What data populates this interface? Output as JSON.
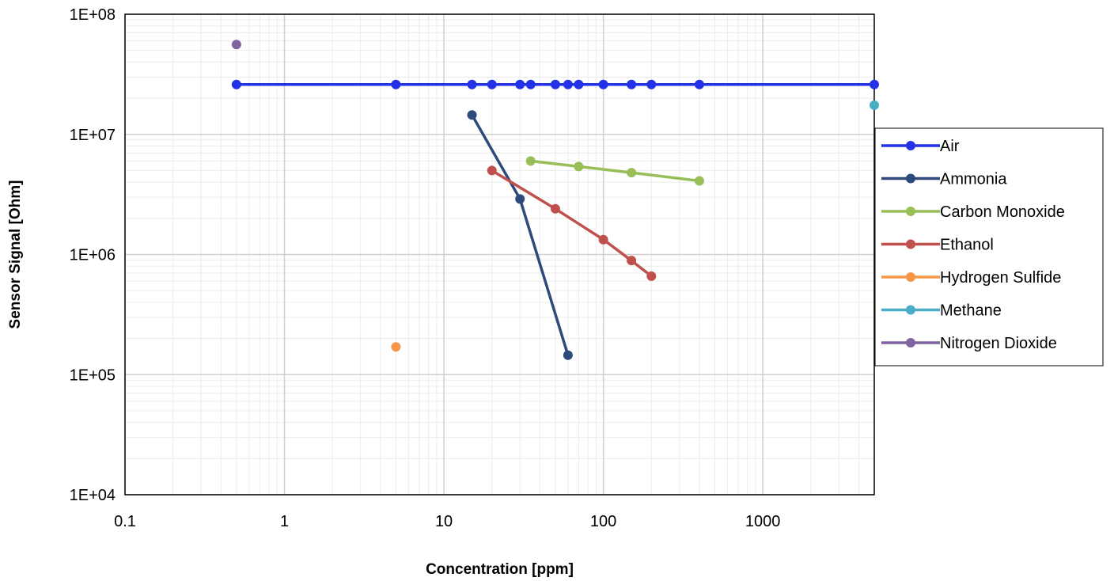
{
  "chart_data": {
    "type": "line",
    "title": "",
    "xlabel": "Concentration [ppm]",
    "ylabel": "Sensor Signal [Ohm]",
    "x_scale": "log",
    "y_scale": "log",
    "xlim": [
      0.1,
      5000
    ],
    "ylim": [
      10000,
      100000000
    ],
    "x_tick_labels": [
      "0.1",
      "1",
      "10",
      "100",
      "1000"
    ],
    "y_tick_labels": [
      "1E+04",
      "1E+05",
      "1E+06",
      "1E+07",
      "1E+08"
    ],
    "grid": true,
    "legend_position": "right",
    "series": [
      {
        "name": "Air",
        "color": "#2332e6",
        "x": [
          0.5,
          5,
          15,
          20,
          30,
          35,
          50,
          60,
          70,
          100,
          150,
          200,
          400,
          5000
        ],
        "y": [
          26000000,
          26000000,
          26000000,
          26000000,
          26000000,
          26000000,
          26000000,
          26000000,
          26000000,
          26000000,
          26000000,
          26000000,
          26000000,
          26000000
        ]
      },
      {
        "name": "Ammonia",
        "color": "#2e4a7a",
        "x": [
          15,
          30,
          60
        ],
        "y": [
          14500000,
          2900000,
          145000
        ]
      },
      {
        "name": "Carbon Monoxide",
        "color": "#97be57",
        "x": [
          35,
          70,
          150,
          400
        ],
        "y": [
          6000000,
          5400000,
          4800000,
          4100000
        ]
      },
      {
        "name": "Ethanol",
        "color": "#c0504d",
        "x": [
          20,
          50,
          100,
          150,
          200
        ],
        "y": [
          5000000,
          2400000,
          1330000,
          890000,
          660000
        ]
      },
      {
        "name": "Hydrogen Sulfide",
        "color": "#f79646",
        "x": [
          5
        ],
        "y": [
          170000
        ]
      },
      {
        "name": "Methane",
        "color": "#4bacc6",
        "x": [
          5000
        ],
        "y": [
          17500000
        ]
      },
      {
        "name": "Nitrogen Dioxide",
        "color": "#8064a2",
        "x": [
          0.5
        ],
        "y": [
          56000000
        ]
      }
    ]
  }
}
